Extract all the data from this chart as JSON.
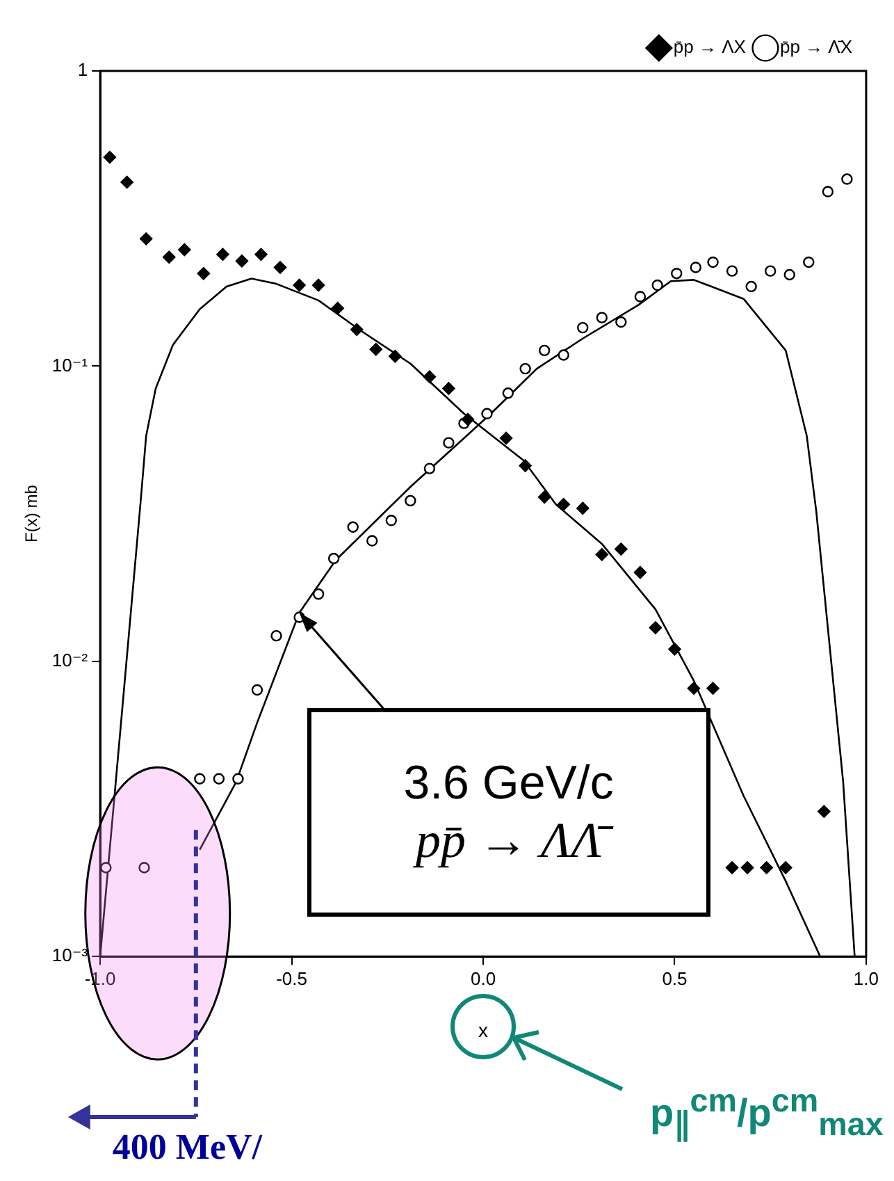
{
  "chart_data": {
    "type": "scatter",
    "xlabel": "x",
    "ylabel": "F(x) mb",
    "log": "y",
    "grid": false,
    "legend": "top right",
    "xlim": [
      -1,
      1
    ],
    "ylim": [
      0.001,
      1
    ],
    "xticks": [
      {
        "value": -1,
        "label": "-1.0"
      },
      {
        "value": -0.5,
        "label": "-0.5"
      },
      {
        "value": 0,
        "label": "0.0"
      },
      {
        "value": 0.5,
        "label": "0.5"
      },
      {
        "value": 1,
        "label": "1.0"
      }
    ],
    "yticks": [
      {
        "value": 0.001,
        "label": "10⁻³"
      },
      {
        "value": 0.01,
        "label": "10⁻²"
      },
      {
        "value": 0.1,
        "label": "10⁻¹"
      },
      1
    ],
    "series": [
      {
        "name": "p̄p → ΛX",
        "type": "scatter",
        "marker": "diamond",
        "color": "#000000",
        "x": [
          -0.975,
          -0.93,
          -0.88,
          -0.82,
          -0.78,
          -0.73,
          -0.68,
          -0.63,
          -0.58,
          -0.53,
          -0.48,
          -0.43,
          -0.38,
          -0.33,
          -0.28,
          -0.23,
          -0.14,
          -0.09,
          -0.04,
          0.06,
          0.11,
          0.16,
          0.21,
          0.26,
          0.31,
          0.36,
          0.41,
          0.45,
          0.5,
          0.55,
          0.6,
          0.65,
          0.69,
          0.74,
          0.79,
          0.89
        ],
        "values": [
          0.51,
          0.42,
          0.27,
          0.234,
          0.248,
          0.206,
          0.239,
          0.227,
          0.239,
          0.216,
          0.188,
          0.188,
          0.157,
          0.133,
          0.114,
          0.108,
          0.092,
          0.084,
          0.066,
          0.057,
          0.046,
          0.036,
          0.034,
          0.033,
          0.023,
          0.024,
          0.02,
          0.013,
          0.011,
          0.0081,
          0.0081,
          0.002,
          0.002,
          0.002,
          0.002,
          0.0031
        ]
      },
      {
        "name": "p̄p → Λ̄X",
        "type": "scatter",
        "marker": "circle",
        "color": "#000000",
        "x": [
          -0.985,
          -0.885,
          -0.74,
          -0.69,
          -0.64,
          -0.59,
          -0.54,
          -0.48,
          -0.43,
          -0.39,
          -0.34,
          -0.29,
          -0.24,
          -0.19,
          -0.14,
          -0.09,
          -0.05,
          0.01,
          0.065,
          0.11,
          0.16,
          0.21,
          0.26,
          0.31,
          0.36,
          0.41,
          0.455,
          0.505,
          0.555,
          0.6,
          0.65,
          0.7,
          0.75,
          0.8,
          0.85,
          0.9,
          0.95
        ],
        "values": [
          0.002,
          0.002,
          0.004,
          0.004,
          0.004,
          0.008,
          0.0122,
          0.0141,
          0.0169,
          0.0223,
          0.0285,
          0.0256,
          0.03,
          0.035,
          0.045,
          0.055,
          0.064,
          0.069,
          0.081,
          0.098,
          0.113,
          0.109,
          0.135,
          0.146,
          0.141,
          0.172,
          0.188,
          0.206,
          0.216,
          0.225,
          0.21,
          0.186,
          0.21,
          0.204,
          0.225,
          0.39,
          0.43
        ]
      },
      {
        "type": "line",
        "marker": "none",
        "color": "#000000",
        "x": [
          -1,
          -0.945,
          -0.895,
          -0.88,
          -0.855,
          -0.81,
          -0.74,
          -0.67,
          -0.605,
          -0.54,
          -0.43,
          -0.32,
          -0.19,
          -0.05,
          0.105,
          0.19,
          0.31,
          0.45,
          0.55,
          0.68,
          0.79,
          0.88
        ],
        "values": [
          0.001,
          0.0063,
          0.034,
          0.058,
          0.084,
          0.118,
          0.156,
          0.186,
          0.198,
          0.19,
          0.167,
          0.132,
          0.102,
          0.069,
          0.048,
          0.034,
          0.025,
          0.015,
          0.0086,
          0.0035,
          0.0018,
          0.001
        ]
      },
      {
        "type": "line",
        "marker": "none",
        "color": "#000000",
        "x": [
          -0.74,
          -0.645,
          -0.59,
          -0.48,
          -0.385,
          -0.19,
          -0.05,
          0.02,
          0.14,
          0.26,
          0.405,
          0.49,
          0.55,
          0.68,
          0.79,
          0.845,
          0.87,
          0.94,
          0.97
        ],
        "values": [
          0.0023,
          0.0039,
          0.0062,
          0.0146,
          0.022,
          0.039,
          0.057,
          0.069,
          0.098,
          0.124,
          0.161,
          0.194,
          0.196,
          0.169,
          0.113,
          0.058,
          0.032,
          0.0039,
          0.001
        ]
      }
    ],
    "ref_lines": [
      {
        "axis": "x",
        "value": -0.75,
        "label": "400 MeV/",
        "color": "#333399",
        "line_style": "dashed"
      }
    ],
    "annotations": [
      {
        "text": "3.6 GeV/c",
        "x": -0.48,
        "y": 0.0146
      },
      "pp̄ → ΛΛ̄",
      "p$_{∥}$$^{cm}$/p$^{cm}$$_{max}$"
    ]
  }
}
